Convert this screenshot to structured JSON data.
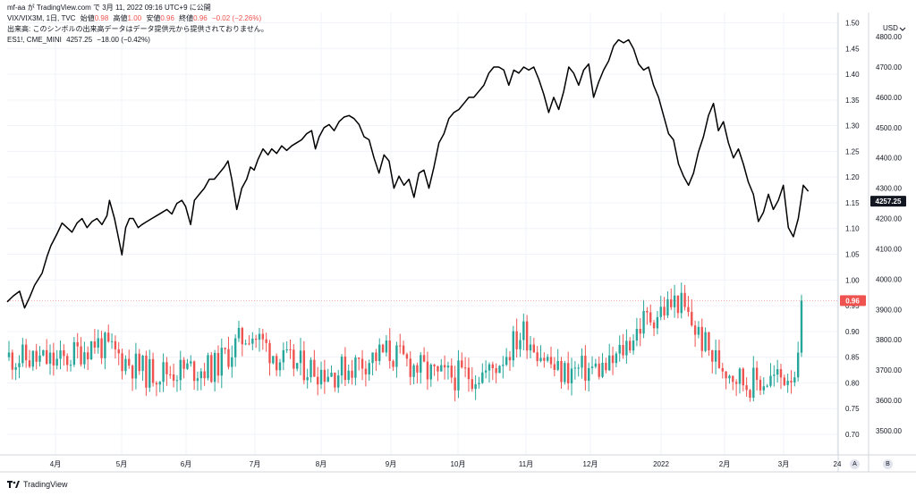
{
  "header": {
    "publisher": "mf-aa",
    "published_prefix": "が TradingView.com で",
    "published_date": "3月 11, 2022 09:16 UTC+9",
    "published_suffix": "に公開",
    "main_symbol": "VIX/VIX3M, 1日, TVC",
    "open_label": "始値",
    "open_value": "0.98",
    "high_label": "高値",
    "high_value": "1.00",
    "low_label": "安値",
    "low_value": "0.96",
    "close_label": "終値",
    "close_value": "0.96",
    "change": "−0.02 (−2.26%)",
    "volume_note": "出来高: このシンボルの出来高データはデータ提供元から提供されておりません。",
    "overlay_symbol": "ES1!, CME_MINI",
    "overlay_value": "4257.25",
    "overlay_change": "−18.00 (−0.42%)"
  },
  "footer": {
    "brand": "TradingView"
  },
  "currency_label": "USD",
  "corner_buttons": [
    "A",
    "B"
  ],
  "colors": {
    "up": "#26a69a",
    "down": "#ef5350",
    "line": "#000000",
    "grid": "#f0f3fa",
    "axis_border": "#d1d4dc",
    "last_price_line": "#ef5350"
  },
  "chart_data": {
    "type": "candlestick+line",
    "x_ticks": [
      "4月",
      "5月",
      "6月",
      "7月",
      "8月",
      "9月",
      "10月",
      "11月",
      "12月",
      "2022",
      "2月",
      "3月",
      "24"
    ],
    "left_axis": {
      "series": "VIX/VIX3M",
      "range": [
        0.66,
        1.52
      ],
      "ticks": [
        1.5,
        1.45,
        1.4,
        1.35,
        1.3,
        1.25,
        1.2,
        1.15,
        1.1,
        1.05,
        1.0,
        0.95,
        0.9,
        0.85,
        0.8,
        0.75,
        0.7
      ],
      "last_value": 0.96
    },
    "right_axis": {
      "series": "ES1!",
      "range": [
        3420,
        4880
      ],
      "ticks": [
        4800,
        4700,
        4600,
        4500,
        4400,
        4300,
        4200,
        4100,
        4000,
        3900,
        3800,
        3700,
        3600,
        3500
      ],
      "last_value": 4257.25
    },
    "es1_points": [
      [
        0,
        3925
      ],
      [
        5,
        3945
      ],
      [
        10,
        3960
      ],
      [
        14,
        3905
      ],
      [
        18,
        3940
      ],
      [
        22,
        3980
      ],
      [
        28,
        4020
      ],
      [
        32,
        4075
      ],
      [
        35,
        4110
      ],
      [
        40,
        4150
      ],
      [
        44,
        4185
      ],
      [
        48,
        4170
      ],
      [
        52,
        4155
      ],
      [
        56,
        4185
      ],
      [
        60,
        4200
      ],
      [
        64,
        4170
      ],
      [
        68,
        4190
      ],
      [
        72,
        4200
      ],
      [
        76,
        4180
      ],
      [
        80,
        4210
      ],
      [
        82,
        4260
      ],
      [
        86,
        4200
      ],
      [
        89,
        4140
      ],
      [
        92,
        4080
      ],
      [
        95,
        4170
      ],
      [
        98,
        4200
      ],
      [
        101,
        4200
      ],
      [
        105,
        4170
      ],
      [
        108,
        4180
      ],
      [
        112,
        4190
      ],
      [
        116,
        4200
      ],
      [
        120,
        4210
      ],
      [
        124,
        4220
      ],
      [
        128,
        4230
      ],
      [
        132,
        4215
      ],
      [
        136,
        4250
      ],
      [
        140,
        4260
      ],
      [
        143,
        4240
      ],
      [
        147,
        4180
      ],
      [
        150,
        4260
      ],
      [
        154,
        4280
      ],
      [
        158,
        4300
      ],
      [
        162,
        4330
      ],
      [
        166,
        4330
      ],
      [
        170,
        4350
      ],
      [
        174,
        4370
      ],
      [
        177,
        4390
      ],
      [
        180,
        4330
      ],
      [
        184,
        4230
      ],
      [
        188,
        4300
      ],
      [
        192,
        4330
      ],
      [
        195,
        4370
      ],
      [
        198,
        4360
      ],
      [
        201,
        4395
      ],
      [
        205,
        4430
      ],
      [
        209,
        4410
      ],
      [
        212,
        4430
      ],
      [
        216,
        4415
      ],
      [
        220,
        4440
      ],
      [
        224,
        4425
      ],
      [
        228,
        4440
      ],
      [
        232,
        4450
      ],
      [
        236,
        4460
      ],
      [
        240,
        4480
      ],
      [
        244,
        4490
      ],
      [
        247,
        4430
      ],
      [
        250,
        4470
      ],
      [
        254,
        4500
      ],
      [
        258,
        4510
      ],
      [
        262,
        4490
      ],
      [
        266,
        4520
      ],
      [
        270,
        4535
      ],
      [
        274,
        4540
      ],
      [
        278,
        4530
      ],
      [
        282,
        4510
      ],
      [
        286,
        4470
      ],
      [
        290,
        4460
      ],
      [
        294,
        4400
      ],
      [
        298,
        4350
      ],
      [
        302,
        4410
      ],
      [
        306,
        4390
      ],
      [
        310,
        4300
      ],
      [
        314,
        4340
      ],
      [
        318,
        4310
      ],
      [
        322,
        4330
      ],
      [
        326,
        4270
      ],
      [
        330,
        4350
      ],
      [
        334,
        4360
      ],
      [
        338,
        4300
      ],
      [
        342,
        4370
      ],
      [
        346,
        4450
      ],
      [
        350,
        4480
      ],
      [
        354,
        4530
      ],
      [
        358,
        4550
      ],
      [
        362,
        4560
      ],
      [
        366,
        4580
      ],
      [
        370,
        4600
      ],
      [
        374,
        4600
      ],
      [
        378,
        4620
      ],
      [
        382,
        4640
      ],
      [
        386,
        4680
      ],
      [
        390,
        4700
      ],
      [
        394,
        4700
      ],
      [
        398,
        4690
      ],
      [
        402,
        4640
      ],
      [
        406,
        4690
      ],
      [
        410,
        4680
      ],
      [
        414,
        4700
      ],
      [
        418,
        4690
      ],
      [
        422,
        4700
      ],
      [
        426,
        4660
      ],
      [
        430,
        4610
      ],
      [
        434,
        4550
      ],
      [
        438,
        4600
      ],
      [
        442,
        4560
      ],
      [
        446,
        4620
      ],
      [
        450,
        4700
      ],
      [
        454,
        4680
      ],
      [
        458,
        4640
      ],
      [
        462,
        4690
      ],
      [
        466,
        4710
      ],
      [
        470,
        4600
      ],
      [
        474,
        4650
      ],
      [
        478,
        4690
      ],
      [
        482,
        4720
      ],
      [
        486,
        4770
      ],
      [
        490,
        4790
      ],
      [
        494,
        4780
      ],
      [
        498,
        4790
      ],
      [
        502,
        4760
      ],
      [
        506,
        4710
      ],
      [
        510,
        4690
      ],
      [
        514,
        4700
      ],
      [
        518,
        4640
      ],
      [
        522,
        4600
      ],
      [
        526,
        4540
      ],
      [
        530,
        4480
      ],
      [
        534,
        4460
      ],
      [
        538,
        4380
      ],
      [
        542,
        4340
      ],
      [
        546,
        4310
      ],
      [
        550,
        4350
      ],
      [
        554,
        4420
      ],
      [
        558,
        4470
      ],
      [
        562,
        4540
      ],
      [
        566,
        4580
      ],
      [
        570,
        4490
      ],
      [
        574,
        4520
      ],
      [
        578,
        4450
      ],
      [
        582,
        4400
      ],
      [
        586,
        4430
      ],
      [
        590,
        4380
      ],
      [
        594,
        4320
      ],
      [
        598,
        4280
      ],
      [
        602,
        4190
      ],
      [
        606,
        4220
      ],
      [
        610,
        4280
      ],
      [
        614,
        4230
      ],
      [
        618,
        4260
      ],
      [
        622,
        4310
      ],
      [
        626,
        4170
      ],
      [
        630,
        4140
      ],
      [
        634,
        4200
      ],
      [
        638,
        4310
      ],
      [
        642,
        4290
      ]
    ]
  }
}
